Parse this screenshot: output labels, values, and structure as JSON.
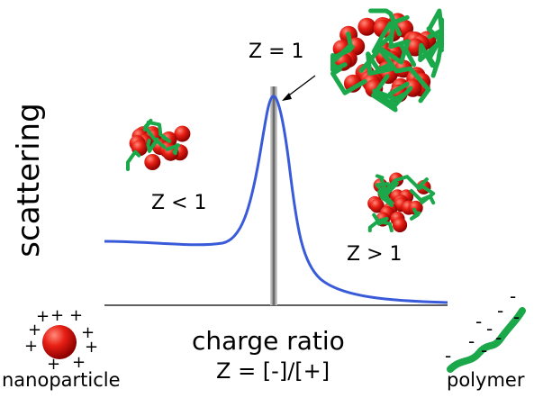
{
  "y_axis_label": "scattering",
  "x_axis_label": "charge ratio",
  "x_axis_formula": "Z = [-]/[+]",
  "regions": {
    "peak_label": "Z = 1",
    "low_label": "Z < 1",
    "high_label": "Z > 1"
  },
  "legend": {
    "nanoparticle_label": "nanoparticle",
    "polymer_label": "polymer"
  },
  "colors": {
    "curve": "#3a5bd9",
    "nanoparticle": "#d01010",
    "polymer": "#1aa84a",
    "axis": "#000000"
  }
}
